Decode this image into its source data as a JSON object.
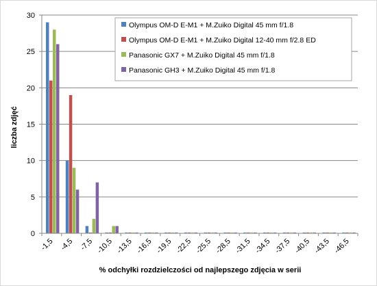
{
  "chart_data": {
    "type": "bar",
    "title": "",
    "xlabel": "% odchyłki rozdzielczości od najlepszego zdjęcia w serii",
    "ylabel": "liczba zdjęć",
    "ylim": [
      0,
      30
    ],
    "y_ticks": [
      0,
      5,
      10,
      15,
      20,
      25,
      30
    ],
    "grid": true,
    "legend_position": "top-right",
    "categories": [
      "-1,5",
      "-4,5",
      "-7,5",
      "-10,5",
      "-13,5",
      "-16,5",
      "-19,5",
      "-22,5",
      "-25,5",
      "-28,5",
      "-31,5",
      "-34,5",
      "-37,5",
      "-40,5",
      "-43,5",
      "-46,5"
    ],
    "series": [
      {
        "name": "Olympus OM-D E-M1 + M.Zuiko Digital 45 mm f/1.8",
        "color": "#4f81bd",
        "values": [
          29,
          10,
          1,
          0,
          0,
          0,
          0,
          0,
          0,
          0,
          0,
          0,
          0,
          0,
          0,
          0
        ]
      },
      {
        "name": "Olympus OM-D E-M1 + M.Zuiko Digital 12-40 mm f/2.8 ED",
        "color": "#c0504d",
        "values": [
          21,
          19,
          0,
          0,
          0,
          0,
          0,
          0,
          0,
          0,
          0,
          0,
          0,
          0,
          0,
          0
        ]
      },
      {
        "name": "Panasonic GX7 + M.Zuiko Digital 45 mm f/1.8",
        "color": "#9bbb59",
        "values": [
          28,
          9,
          2,
          1,
          0,
          0,
          0,
          0,
          0,
          0,
          0,
          0,
          0,
          0,
          0,
          0
        ]
      },
      {
        "name": "Panasonic GH3 + M.Zuiko Digital 45 mm f/1.8",
        "color": "#8064a2",
        "values": [
          26,
          6,
          7,
          1,
          0,
          0,
          0,
          0,
          0,
          0,
          0,
          0,
          0,
          0,
          0,
          0
        ]
      }
    ]
  }
}
